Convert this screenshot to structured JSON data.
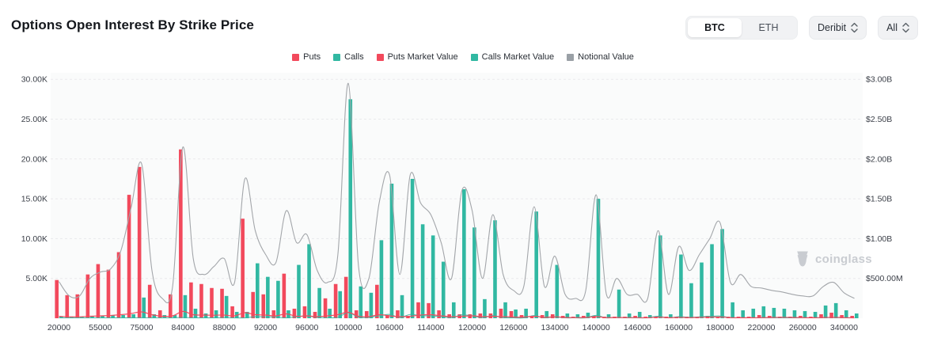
{
  "header": {
    "title": "Options Open Interest By Strike Price",
    "asset_toggle": {
      "options": [
        "BTC",
        "ETH"
      ],
      "selected": "BTC"
    },
    "exchange_dropdown": "Deribit",
    "range_dropdown": "All"
  },
  "watermark": "coinglass",
  "colors": {
    "puts_red": "#f2495c",
    "calls_teal": "#31b8a2",
    "notional_gray": "#a3a6aa",
    "grid": "#e9eaec",
    "axis_text": "#3c4049",
    "legend_gray_swatch": "#9aa0a6"
  },
  "chart_data": {
    "type": "bar",
    "title": "Options Open Interest By Strike Price",
    "legend": [
      {
        "label": "Puts",
        "swatch": "#f2495c"
      },
      {
        "label": "Calls",
        "swatch": "#31b8a2"
      },
      {
        "label": "Puts Market Value",
        "swatch": "#f2495c"
      },
      {
        "label": "Calls Market Value",
        "swatch": "#31b8a2"
      },
      {
        "label": "Notional Value",
        "swatch": "#9aa0a6"
      }
    ],
    "legend_position": "top-center",
    "grid_dashed": true,
    "left_axis": {
      "unit": "contracts (K)",
      "ticks": [
        "5.00K",
        "10.00K",
        "15.00K",
        "20.00K",
        "25.00K",
        "30.00K"
      ],
      "tick_values_k": [
        5,
        10,
        15,
        20,
        25,
        30
      ],
      "max_k": 30
    },
    "right_axis": {
      "unit": "USD",
      "ticks": [
        "$500.00M",
        "$1.00B",
        "$1.50B",
        "$2.00B",
        "$2.50B",
        "$3.00B"
      ],
      "tick_values_b": [
        0.5,
        1,
        1.5,
        2,
        2.5,
        3
      ],
      "max_b": 3
    },
    "x_tick_labels": [
      "20000",
      "55000",
      "75000",
      "84000",
      "88000",
      "92000",
      "96000",
      "100000",
      "106000",
      "114000",
      "120000",
      "126000",
      "134000",
      "140000",
      "146000",
      "160000",
      "180000",
      "220000",
      "260000",
      "340000"
    ],
    "x_label_every": 4,
    "strikes": [
      20000,
      30000,
      40000,
      50000,
      55000,
      60000,
      65000,
      70000,
      75000,
      78000,
      80000,
      82000,
      84000,
      85000,
      86000,
      87000,
      88000,
      89000,
      90000,
      91000,
      92000,
      93000,
      94000,
      95000,
      96000,
      97000,
      98000,
      99000,
      100000,
      102000,
      104000,
      105000,
      106000,
      108000,
      110000,
      112000,
      114000,
      115000,
      116000,
      118000,
      120000,
      122000,
      124000,
      125000,
      126000,
      128000,
      130000,
      132000,
      134000,
      135000,
      136000,
      138000,
      140000,
      142000,
      144000,
      145000,
      146000,
      148000,
      150000,
      155000,
      160000,
      165000,
      170000,
      175000,
      180000,
      190000,
      200000,
      210000,
      220000,
      230000,
      240000,
      250000,
      260000,
      280000,
      300000,
      320000,
      340000,
      360000
    ],
    "series": [
      {
        "name": "Puts",
        "type": "bar",
        "axis": "left",
        "unit": "K",
        "values": [
          4.8,
          2.9,
          3.0,
          5.5,
          6.8,
          6.1,
          8.3,
          15.5,
          19.0,
          4.2,
          1.0,
          3.0,
          21.2,
          4.5,
          4.3,
          3.8,
          3.7,
          1.5,
          12.5,
          3.3,
          3.0,
          1.0,
          5.6,
          1.2,
          1.5,
          0.8,
          2.5,
          4.3,
          5.2,
          1.0,
          0.9,
          4.2,
          0.4,
          1.0,
          0.3,
          2.0,
          1.9,
          1.0,
          0.5,
          0.5,
          0.5,
          0.6,
          0.6,
          1.2,
          0.9,
          0.4,
          0.3,
          0.4,
          0.5,
          0.3,
          0.2,
          0.3,
          0.3,
          0.2,
          0.2,
          0.2,
          0.3,
          0.2,
          0.2,
          0.2,
          0.2,
          0.2,
          0.2,
          0.3,
          0.2,
          0.2,
          0.2,
          0.2,
          0.4,
          0.3,
          0.2,
          0.2,
          0.3,
          0.2,
          0.5,
          0.7,
          0.4,
          0.3
        ]
      },
      {
        "name": "Calls",
        "type": "bar",
        "axis": "left",
        "unit": "K",
        "values": [
          0.2,
          0.2,
          0.2,
          0.3,
          0.3,
          0.4,
          0.4,
          0.5,
          2.6,
          0.5,
          0.4,
          0.4,
          2.9,
          1.2,
          0.6,
          1.0,
          2.8,
          0.8,
          0.8,
          6.9,
          5.2,
          4.7,
          1.0,
          6.7,
          9.3,
          3.8,
          1.2,
          3.4,
          27.5,
          4.0,
          3.2,
          9.8,
          16.9,
          2.9,
          17.5,
          11.8,
          10.4,
          7.1,
          2.0,
          16.2,
          11.4,
          2.4,
          12.3,
          2.0,
          1.1,
          1.2,
          13.4,
          0.9,
          6.7,
          0.6,
          0.5,
          0.7,
          15.0,
          0.5,
          3.6,
          0.6,
          0.8,
          0.4,
          10.4,
          0.5,
          8.0,
          4.4,
          7.0,
          9.3,
          11.2,
          2.0,
          1.0,
          1.2,
          1.5,
          1.3,
          1.2,
          1.0,
          0.9,
          0.8,
          1.6,
          1.9,
          1.0,
          0.6
        ]
      },
      {
        "name": "Puts Market Value",
        "type": "line",
        "axis": "right",
        "unit": "M",
        "values": [
          25,
          18,
          18,
          25,
          30,
          35,
          45,
          60,
          80,
          45,
          25,
          30,
          85,
          45,
          40,
          38,
          40,
          30,
          70,
          45,
          40,
          30,
          55,
          25,
          30,
          20,
          30,
          45,
          75,
          25,
          20,
          45,
          30,
          20,
          25,
          40,
          45,
          30,
          20,
          25,
          30,
          20,
          25,
          20,
          15,
          15,
          25,
          12,
          18,
          10,
          8,
          10,
          20,
          8,
          10,
          8,
          8,
          6,
          15,
          6,
          12,
          8,
          12,
          14,
          16,
          8,
          6,
          6,
          8,
          10,
          12,
          10,
          8,
          6,
          10,
          12,
          8,
          5
        ]
      },
      {
        "name": "Calls Market Value",
        "type": "line",
        "axis": "right",
        "unit": "M",
        "values": [
          2,
          2,
          2,
          2,
          2,
          3,
          3,
          4,
          8,
          4,
          3,
          3,
          10,
          5,
          4,
          5,
          9,
          5,
          5,
          20,
          16,
          15,
          5,
          20,
          28,
          12,
          5,
          12,
          70,
          14,
          11,
          30,
          48,
          10,
          48,
          33,
          30,
          22,
          8,
          42,
          30,
          8,
          32,
          8,
          5,
          5,
          34,
          5,
          18,
          4,
          3,
          4,
          36,
          4,
          10,
          4,
          4,
          3,
          26,
          4,
          20,
          12,
          18,
          24,
          28,
          8,
          5,
          5,
          6,
          6,
          6,
          5,
          5,
          5,
          8,
          9,
          6,
          4
        ]
      },
      {
        "name": "Notional Value",
        "type": "line",
        "axis": "right",
        "unit": "B",
        "values": [
          0.46,
          0.28,
          0.28,
          0.5,
          0.58,
          0.62,
          0.85,
          1.4,
          1.94,
          0.6,
          0.25,
          0.4,
          2.15,
          0.75,
          0.55,
          0.65,
          0.75,
          0.45,
          1.75,
          1.1,
          0.8,
          0.7,
          1.35,
          0.95,
          1.05,
          0.6,
          0.45,
          0.8,
          2.95,
          0.65,
          0.5,
          1.45,
          1.8,
          0.55,
          1.8,
          1.45,
          1.3,
          0.95,
          0.5,
          1.6,
          1.35,
          0.5,
          1.3,
          0.55,
          0.35,
          0.4,
          1.4,
          0.4,
          0.78,
          0.3,
          0.25,
          0.35,
          1.55,
          0.3,
          0.5,
          0.3,
          0.3,
          0.25,
          1.1,
          0.3,
          0.9,
          0.6,
          0.8,
          1.0,
          1.2,
          0.45,
          0.55,
          0.4,
          0.38,
          0.35,
          0.33,
          0.3,
          0.28,
          0.28,
          0.4,
          0.45,
          0.32,
          0.25
        ]
      }
    ]
  }
}
